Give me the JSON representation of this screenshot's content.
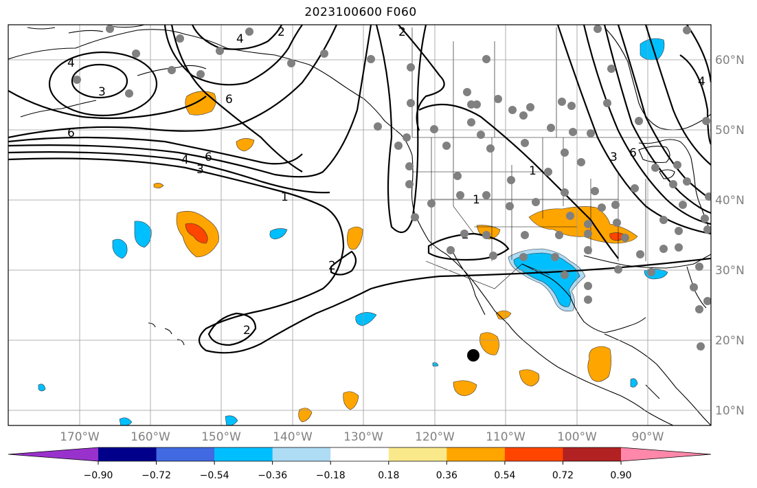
{
  "title": "2023100600 F060",
  "lat_labels": [
    "60°N",
    "50°N",
    "40°N",
    "30°N",
    "20°N",
    "10°N"
  ],
  "lon_labels": [
    "170°W",
    "160°W",
    "150°W",
    "140°W",
    "130°W",
    "120°W",
    "110°W",
    "100°W",
    "90°W"
  ],
  "colorbar": {
    "ticks": [
      "−0.90",
      "−0.72",
      "−0.54",
      "−0.36",
      "−0.18",
      "0.18",
      "0.36",
      "0.54",
      "0.72",
      "0.90"
    ],
    "colors": [
      "#9932cc",
      "#00008b",
      "#4169e1",
      "#00bfff",
      "#afdcf5",
      "#ffffff",
      "#f9e98a",
      "#ffa500",
      "#ff4500",
      "#b22222",
      "#ff88aa"
    ]
  },
  "contour_labels": [
    "4",
    "3",
    "6",
    "6",
    "6",
    "3",
    "4",
    "1",
    "2",
    "2",
    "2",
    "1",
    "1",
    "2",
    "4",
    "2",
    "3",
    "6",
    "4"
  ],
  "colors": {
    "orange": "#ffa500",
    "red_orange": "#ff4500",
    "cyan": "#00bfff",
    "light_blue": "#afdcf5",
    "station_dot": "#808080",
    "center_dot": "#000000"
  }
}
